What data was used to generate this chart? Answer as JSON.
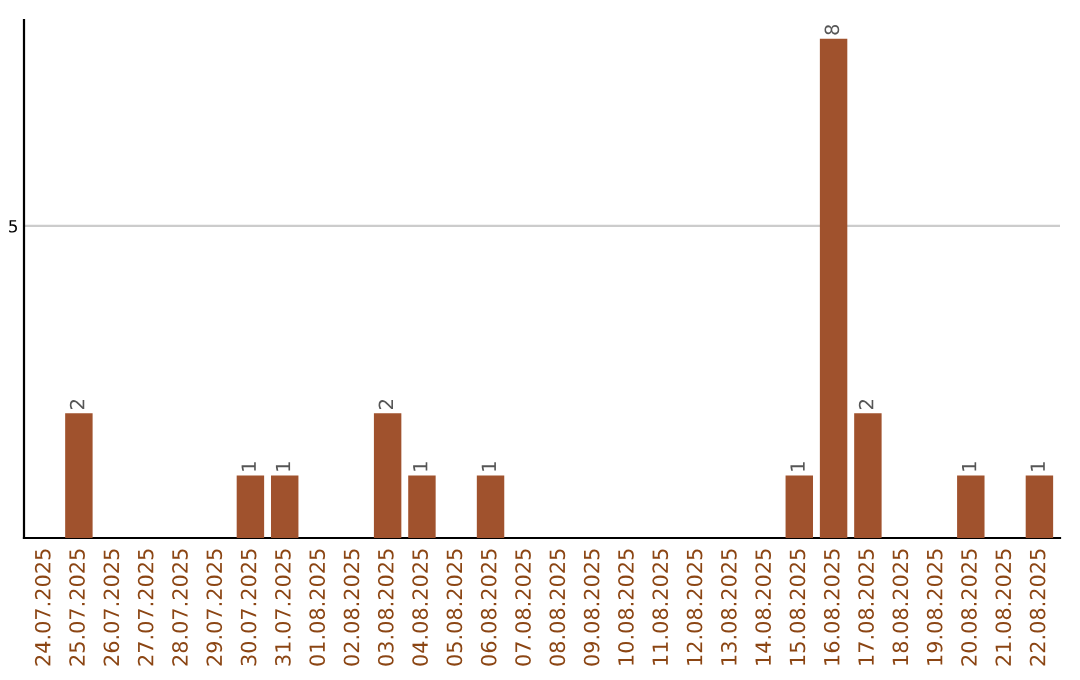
{
  "chart_data": {
    "type": "bar",
    "categories": [
      "24.07.2025",
      "25.07.2025",
      "26.07.2025",
      "27.07.2025",
      "28.07.2025",
      "29.07.2025",
      "30.07.2025",
      "31.07.2025",
      "01.08.2025",
      "02.08.2025",
      "03.08.2025",
      "04.08.2025",
      "05.08.2025",
      "06.08.2025",
      "07.08.2025",
      "08.08.2025",
      "09.08.2025",
      "10.08.2025",
      "11.08.2025",
      "12.08.2025",
      "13.08.2025",
      "14.08.2025",
      "15.08.2025",
      "16.08.2025",
      "17.08.2025",
      "18.08.2025",
      "19.08.2025",
      "20.08.2025",
      "21.08.2025",
      "22.08.2025"
    ],
    "values": [
      0,
      2,
      0,
      0,
      0,
      0,
      1,
      1,
      0,
      0,
      2,
      1,
      0,
      1,
      0,
      0,
      0,
      0,
      0,
      0,
      0,
      0,
      1,
      8,
      2,
      0,
      0,
      1,
      0,
      1
    ],
    "value_labels": [
      null,
      "2",
      null,
      null,
      null,
      null,
      "1",
      "1",
      null,
      null,
      "2",
      "1",
      null,
      "1",
      null,
      null,
      null,
      null,
      null,
      null,
      null,
      null,
      "1",
      "8",
      "2",
      null,
      null,
      "1",
      null,
      "1"
    ],
    "color": "#a0522d",
    "ylim": [
      0,
      8.3
    ],
    "yticks": [
      5
    ],
    "grid": "y"
  }
}
